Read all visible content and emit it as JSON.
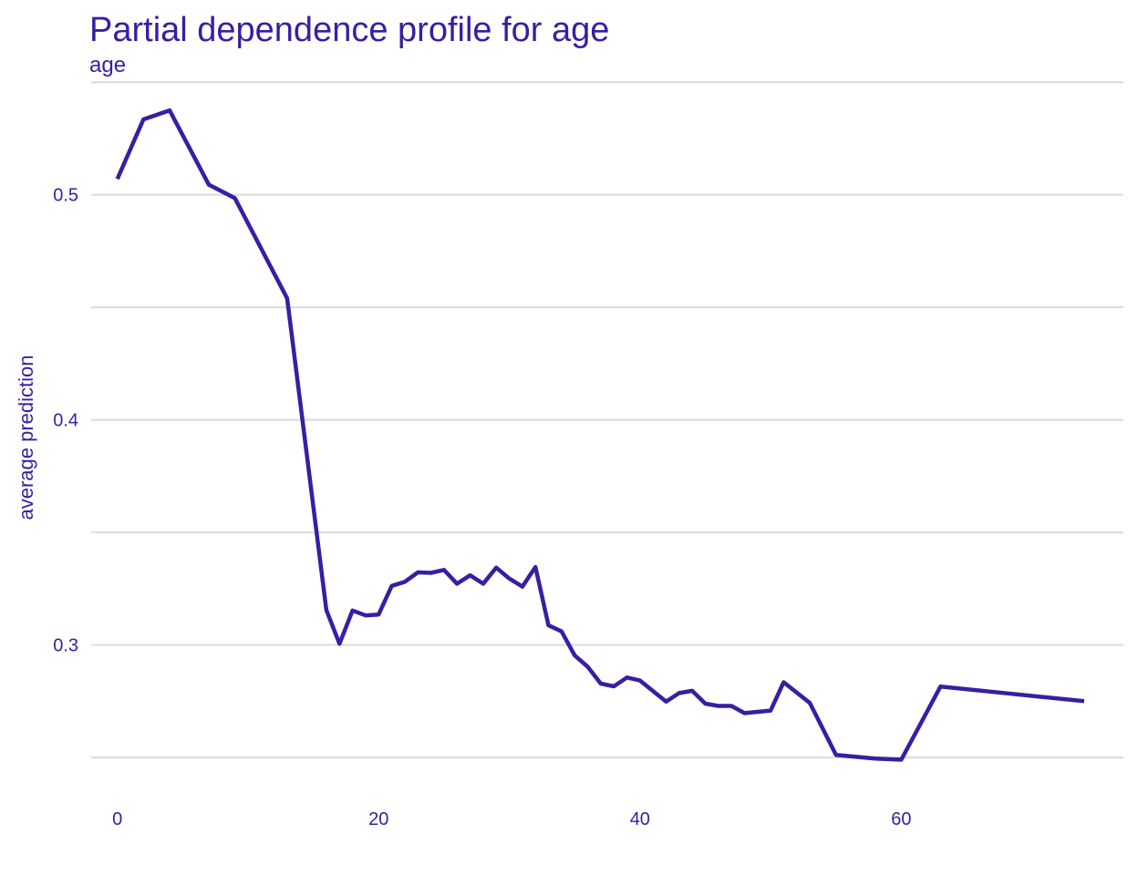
{
  "chart_data": {
    "type": "line",
    "title": "Partial dependence profile for age",
    "subtitle": "age",
    "xlabel": "",
    "ylabel": "average prediction",
    "xlim": [
      -2,
      77
    ],
    "ylim": [
      0.25,
      0.5505
    ],
    "x_ticks": [
      0,
      20,
      40,
      60
    ],
    "y_ticks": [
      0.3,
      0.4,
      0.5
    ],
    "y_gridlines": [
      0.25,
      0.3,
      0.35,
      0.4,
      0.45,
      0.5,
      0.55
    ],
    "grid": "horizontal",
    "line_color": "#371ea3",
    "series": [
      {
        "x": [
          0,
          2,
          4,
          7,
          9,
          13,
          16,
          17,
          18,
          19,
          20,
          21,
          22,
          23,
          24,
          25,
          26,
          27,
          28,
          29,
          30,
          31,
          32,
          33,
          34,
          35,
          36,
          37,
          38,
          39,
          40,
          42,
          43,
          44,
          45,
          46,
          47,
          48,
          50,
          51,
          53,
          55,
          58,
          60,
          63,
          74
        ],
        "y": [
          0.507,
          0.5335,
          0.5375,
          0.5045,
          0.4985,
          0.454,
          0.3155,
          0.3005,
          0.3153,
          0.3131,
          0.3135,
          0.3262,
          0.328,
          0.3322,
          0.332,
          0.3333,
          0.3272,
          0.3309,
          0.3272,
          0.3343,
          0.3295,
          0.3259,
          0.3346,
          0.3087,
          0.306,
          0.2953,
          0.2903,
          0.2828,
          0.2816,
          0.2855,
          0.2842,
          0.2748,
          0.2786,
          0.2796,
          0.2739,
          0.2729,
          0.2729,
          0.2697,
          0.2708,
          0.2834,
          0.2742,
          0.2511,
          0.2495,
          0.249,
          0.2815,
          0.275
        ]
      }
    ]
  }
}
